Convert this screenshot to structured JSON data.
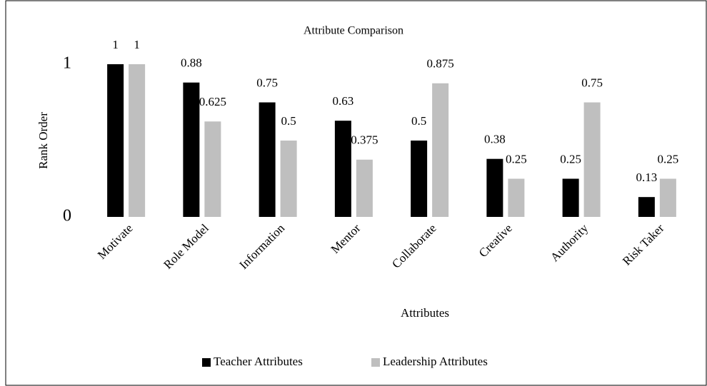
{
  "chart_data": {
    "type": "bar",
    "title": "Attribute Comparison",
    "x_label": "Attributes",
    "y_label": "Rank Order",
    "categories": [
      "Motivate",
      "Role Model",
      "Information",
      "Mentor",
      "Collaborate",
      "Creative",
      "Authority",
      "Risk Taker"
    ],
    "series": [
      {
        "name": "Teacher Attributes",
        "color": "#000000",
        "values": [
          1,
          0.88,
          0.75,
          0.63,
          0.5,
          0.38,
          0.25,
          0.13
        ]
      },
      {
        "name": "Leadership Attributes",
        "color": "#bfbfbf",
        "values": [
          1,
          0.625,
          0.5,
          0.375,
          0.875,
          0.25,
          0.75,
          0.25
        ]
      }
    ],
    "ylim": [
      0,
      1
    ],
    "yticks": [
      0,
      1
    ],
    "grid": false,
    "legend": "bottom"
  }
}
